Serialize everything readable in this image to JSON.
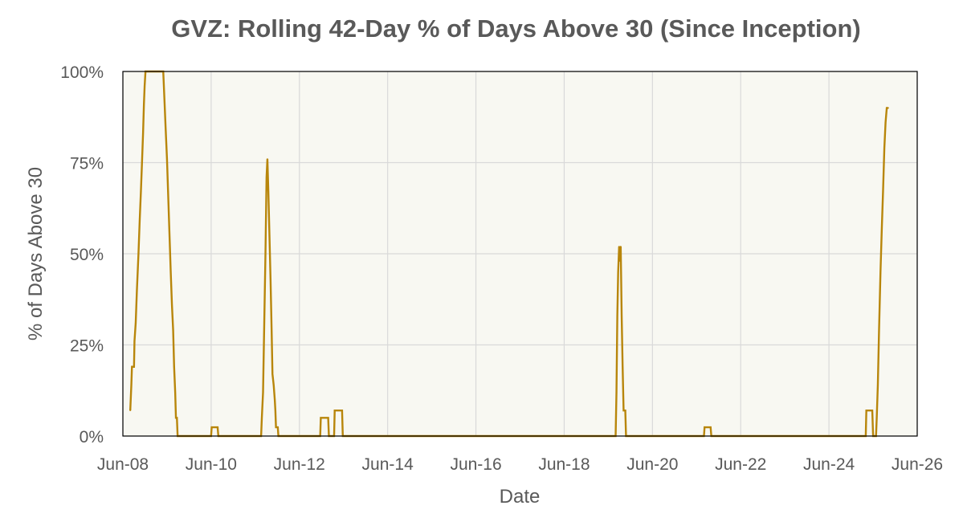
{
  "chart_data": {
    "type": "line",
    "title": "GVZ: Rolling 42-Day % of Days Above 30 (Since Inception)",
    "xlabel": "Date",
    "ylabel": "% of Days Above 30",
    "x_ticks": [
      "Jun-08",
      "Jun-10",
      "Jun-12",
      "Jun-14",
      "Jun-16",
      "Jun-18",
      "Jun-20",
      "Jun-22",
      "Jun-24",
      "Jun-26"
    ],
    "y_ticks": [
      "0%",
      "25%",
      "50%",
      "75%",
      "100%"
    ],
    "xlim": [
      "2008-06-01",
      "2026-06-01"
    ],
    "ylim": [
      0,
      100
    ],
    "grid": true,
    "legend": "none",
    "colors": {
      "line": "#B8860B",
      "plot_bg": "#F8F8F2",
      "grid": "#D9D9D9",
      "text": "#595959"
    },
    "series": [
      {
        "points": [
          [
            "2008-08-01",
            7
          ],
          [
            "2008-08-10",
            14
          ],
          [
            "2008-08-15",
            19
          ],
          [
            "2008-09-01",
            19
          ],
          [
            "2008-09-05",
            26
          ],
          [
            "2008-09-15",
            31
          ],
          [
            "2008-09-25",
            40
          ],
          [
            "2008-10-08",
            50
          ],
          [
            "2008-10-18",
            59
          ],
          [
            "2008-10-28",
            67
          ],
          [
            "2008-11-05",
            74
          ],
          [
            "2008-11-15",
            83
          ],
          [
            "2008-11-22",
            91
          ],
          [
            "2008-11-28",
            96
          ],
          [
            "2008-12-05",
            100
          ],
          [
            "2009-05-01",
            100
          ],
          [
            "2009-05-10",
            93
          ],
          [
            "2009-05-20",
            85
          ],
          [
            "2009-06-01",
            76
          ],
          [
            "2009-06-10",
            67
          ],
          [
            "2009-06-22",
            55
          ],
          [
            "2009-07-02",
            45
          ],
          [
            "2009-07-12",
            36
          ],
          [
            "2009-07-22",
            29
          ],
          [
            "2009-07-30",
            19
          ],
          [
            "2009-08-08",
            12
          ],
          [
            "2009-08-14",
            5
          ],
          [
            "2009-08-22",
            5
          ],
          [
            "2009-08-28",
            0
          ],
          [
            "2010-06-01",
            0
          ],
          [
            "2010-06-06",
            2.4
          ],
          [
            "2010-07-25",
            2.4
          ],
          [
            "2010-07-31",
            0
          ],
          [
            "2011-07-20",
            0
          ],
          [
            "2011-07-26",
            5
          ],
          [
            "2011-08-05",
            12
          ],
          [
            "2011-08-15",
            31
          ],
          [
            "2011-08-25",
            50
          ],
          [
            "2011-09-03",
            71
          ],
          [
            "2011-09-10",
            76
          ],
          [
            "2011-09-18",
            67
          ],
          [
            "2011-09-27",
            55
          ],
          [
            "2011-10-06",
            43
          ],
          [
            "2011-10-15",
            29
          ],
          [
            "2011-10-22",
            17
          ],
          [
            "2011-11-01",
            14
          ],
          [
            "2011-11-10",
            10
          ],
          [
            "2011-11-15",
            7
          ],
          [
            "2011-11-20",
            2.4
          ],
          [
            "2011-12-05",
            2.4
          ],
          [
            "2011-12-10",
            0
          ],
          [
            "2012-11-20",
            0
          ],
          [
            "2012-11-25",
            5
          ],
          [
            "2013-01-25",
            5
          ],
          [
            "2013-01-31",
            0
          ],
          [
            "2013-03-15",
            0
          ],
          [
            "2013-03-20",
            7
          ],
          [
            "2013-05-20",
            7
          ],
          [
            "2013-05-26",
            0
          ],
          [
            "2019-08-01",
            0
          ],
          [
            "2019-08-08",
            12
          ],
          [
            "2019-08-15",
            33
          ],
          [
            "2019-08-22",
            45
          ],
          [
            "2019-08-30",
            52
          ],
          [
            "2019-09-05",
            48
          ],
          [
            "2019-09-12",
            52
          ],
          [
            "2019-09-20",
            33
          ],
          [
            "2019-09-28",
            19
          ],
          [
            "2019-10-06",
            7
          ],
          [
            "2019-10-20",
            7
          ],
          [
            "2019-10-26",
            0
          ],
          [
            "2021-08-01",
            0
          ],
          [
            "2021-08-06",
            2.4
          ],
          [
            "2021-09-25",
            2.4
          ],
          [
            "2021-10-01",
            0
          ],
          [
            "2025-04-01",
            0
          ],
          [
            "2025-04-06",
            7
          ],
          [
            "2025-05-25",
            7
          ],
          [
            "2025-06-01",
            0
          ],
          [
            "2025-06-25",
            0
          ],
          [
            "2025-07-01",
            5
          ],
          [
            "2025-07-10",
            14
          ],
          [
            "2025-07-20",
            29
          ],
          [
            "2025-08-01",
            45
          ],
          [
            "2025-08-12",
            57
          ],
          [
            "2025-08-22",
            67
          ],
          [
            "2025-09-02",
            79
          ],
          [
            "2025-09-12",
            86
          ],
          [
            "2025-09-22",
            90
          ],
          [
            "2025-10-05",
            90
          ]
        ]
      }
    ]
  }
}
